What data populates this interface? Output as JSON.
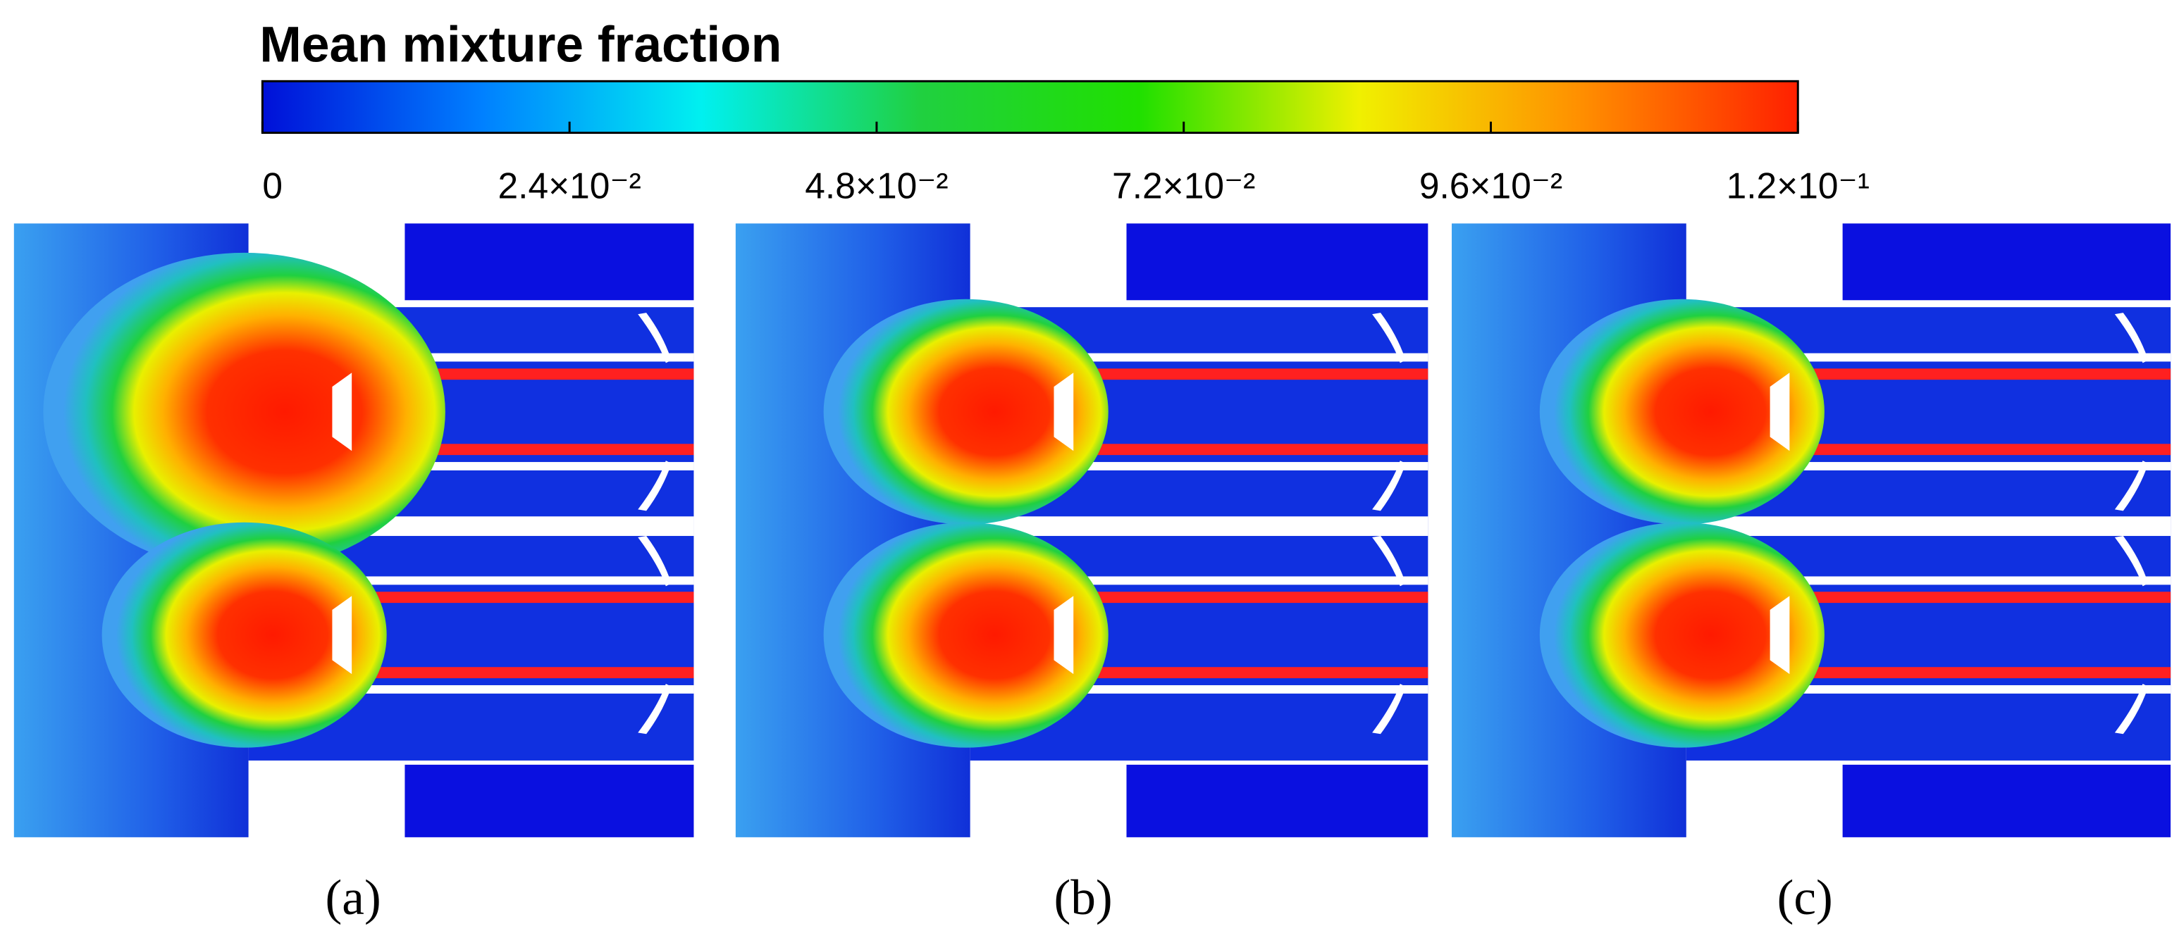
{
  "figure": {
    "colorbar": {
      "title": "Mean mixture fraction",
      "lim": [
        0,
        0.12
      ],
      "ticks": [
        0,
        {
          "value": 0.024,
          "label": "2.4×10⁻²"
        },
        {
          "value": 0.048,
          "label": "4.8×10⁻²"
        },
        {
          "value": 0.072,
          "label": "7.2×10⁻²"
        },
        {
          "value": 0.096,
          "label": "9.6×10⁻²"
        },
        {
          "value": 0.12,
          "label": "1.2×10⁻¹"
        }
      ],
      "colors": [
        "#0010d8",
        "#0080ff",
        "#00f0f0",
        "#20d040",
        "#20e000",
        "#f0f000",
        "#ff9000",
        "#ff2000"
      ]
    },
    "panels": [
      {
        "label": "(a)"
      },
      {
        "label": "(b)"
      },
      {
        "label": "(c)"
      }
    ]
  }
}
